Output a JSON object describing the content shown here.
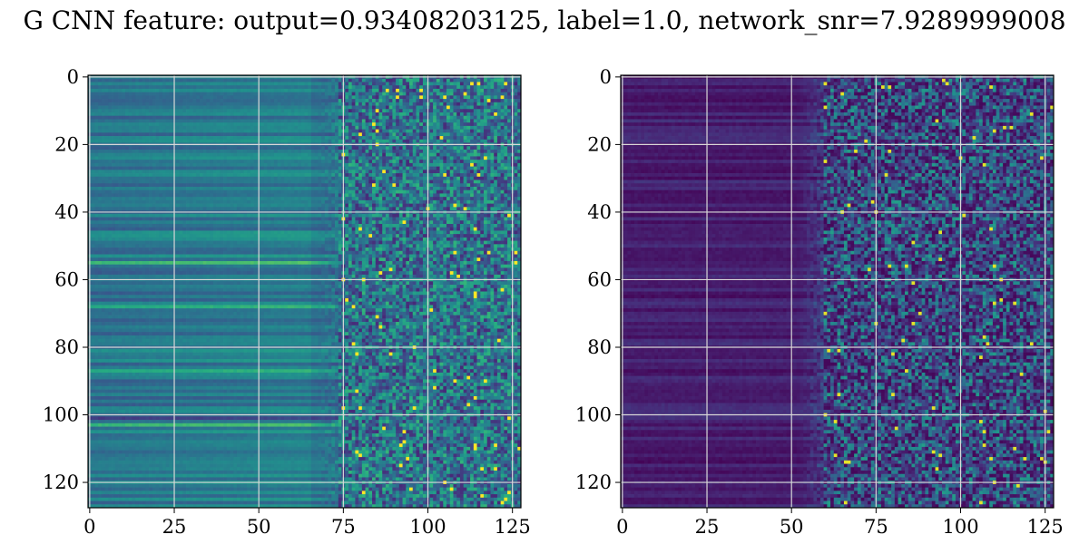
{
  "title": "G CNN feature: output=0.93408203125, label=1.0, network_snr=7.9289999008",
  "chart_data": [
    {
      "type": "heatmap",
      "panel": "left",
      "colormap": "viridis",
      "rows": 128,
      "cols": 128,
      "xlim": [
        0,
        127
      ],
      "ylim": [
        127,
        0
      ],
      "xticks": [
        0,
        25,
        50,
        75,
        100,
        125
      ],
      "yticks": [
        0,
        20,
        40,
        60,
        80,
        100,
        120
      ],
      "grid": true,
      "description_values": {
        "smooth_region_cols": [
          0,
          70
        ],
        "noisy_region_cols": [
          75,
          127
        ],
        "bright_rows": [
          55,
          63,
          68,
          87,
          99,
          103
        ]
      }
    },
    {
      "type": "heatmap",
      "panel": "right",
      "colormap": "viridis",
      "rows": 128,
      "cols": 128,
      "xlim": [
        0,
        127
      ],
      "ylim": [
        127,
        0
      ],
      "xticks": [
        0,
        25,
        50,
        75,
        100,
        125
      ],
      "yticks": [
        0,
        20,
        40,
        60,
        80,
        100,
        120
      ],
      "grid": true,
      "description_values": {
        "smooth_region_cols": [
          0,
          55
        ],
        "noisy_region_cols": [
          60,
          127
        ]
      }
    }
  ]
}
